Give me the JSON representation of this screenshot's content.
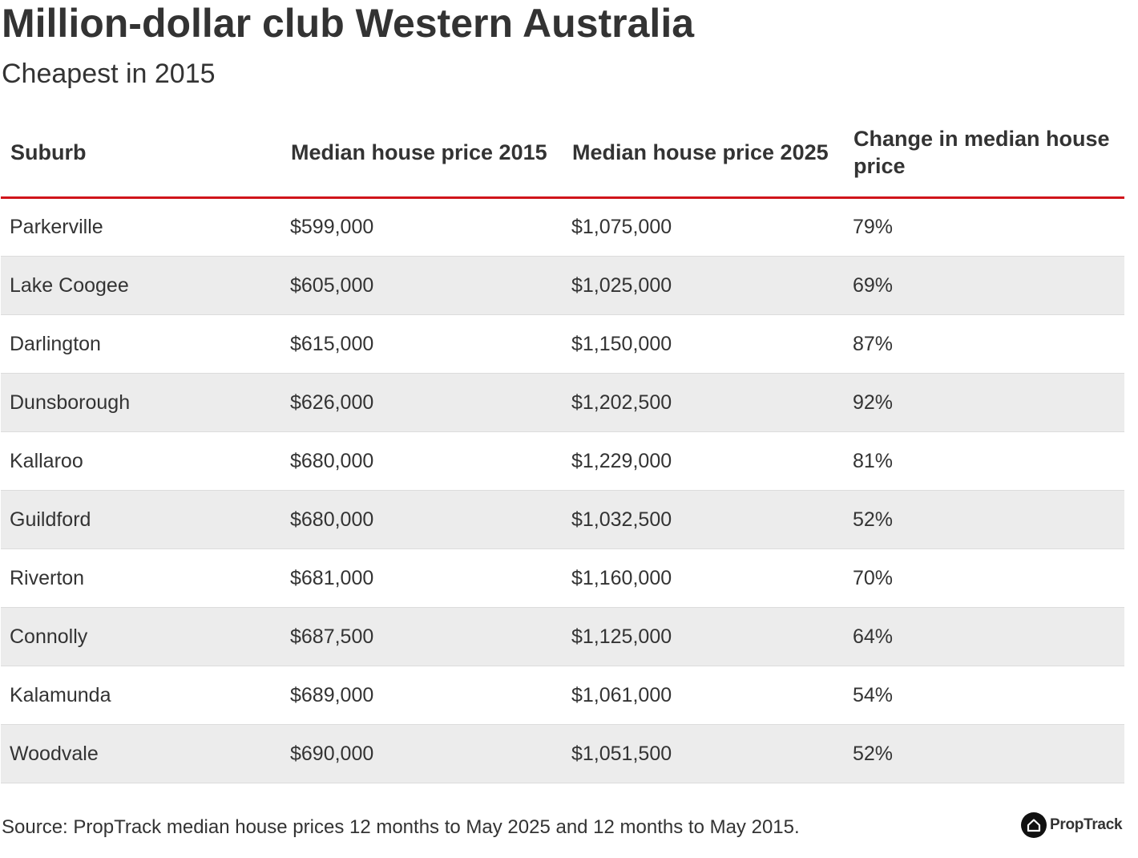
{
  "header": {
    "title": "Million-dollar club Western Australia",
    "subtitle": "Cheapest in 2015"
  },
  "table": {
    "columns": [
      "Suburb",
      "Median house price 2015",
      "Median house price 2025",
      "Change in median house price"
    ],
    "rows": [
      [
        "Parkerville",
        "$599,000",
        "$1,075,000",
        "79%"
      ],
      [
        "Lake Coogee",
        "$605,000",
        "$1,025,000",
        "69%"
      ],
      [
        "Darlington",
        "$615,000",
        "$1,150,000",
        "87%"
      ],
      [
        "Dunsborough",
        "$626,000",
        "$1,202,500",
        "92%"
      ],
      [
        "Kallaroo",
        "$680,000",
        "$1,229,000",
        "81%"
      ],
      [
        "Guildford",
        "$680,000",
        "$1,032,500",
        "52%"
      ],
      [
        "Riverton",
        "$681,000",
        "$1,160,000",
        "70%"
      ],
      [
        "Connolly",
        "$687,500",
        "$1,125,000",
        "64%"
      ],
      [
        "Kalamunda",
        "$689,000",
        "$1,061,000",
        "54%"
      ],
      [
        "Woodvale",
        "$690,000",
        "$1,051,500",
        "52%"
      ]
    ]
  },
  "footer": {
    "source": "Source: PropTrack median house prices 12 months to May 2025 and 12 months to May 2015.",
    "logo_text": "PropTrack",
    "logo_icon": "house-icon"
  },
  "colors": {
    "header_rule": "#d0141b",
    "stripe": "#ececec",
    "text": "#333333"
  },
  "chart_data": {
    "type": "table",
    "title": "Million-dollar club Western Australia",
    "subtitle": "Cheapest in 2015",
    "columns": [
      "Suburb",
      "Median house price 2015",
      "Median house price 2025",
      "Change in median house price"
    ],
    "rows": [
      [
        "Parkerville",
        599000,
        1075000,
        79
      ],
      [
        "Lake Coogee",
        605000,
        1025000,
        69
      ],
      [
        "Darlington",
        615000,
        1150000,
        87
      ],
      [
        "Dunsborough",
        626000,
        1202500,
        92
      ],
      [
        "Kallaroo",
        680000,
        1229000,
        81
      ],
      [
        "Guildford",
        680000,
        1032500,
        52
      ],
      [
        "Riverton",
        681000,
        1160000,
        70
      ],
      [
        "Connolly",
        687500,
        1125000,
        64
      ],
      [
        "Kalamunda",
        689000,
        1061000,
        54
      ],
      [
        "Woodvale",
        690000,
        1051500,
        52
      ]
    ]
  }
}
